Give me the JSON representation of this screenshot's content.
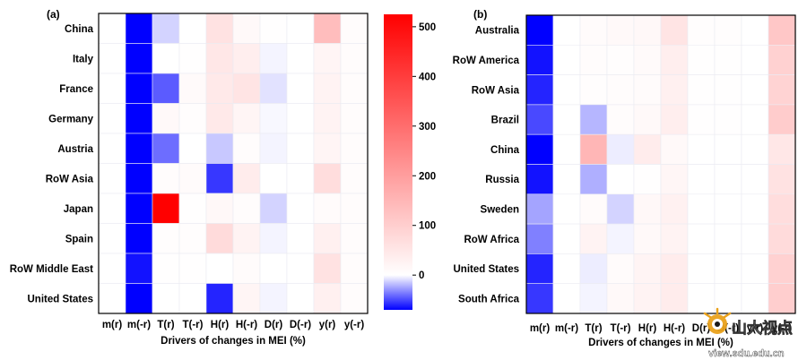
{
  "colorbar": {
    "ticks": [
      500,
      400,
      300,
      200,
      100,
      0
    ],
    "min": -70,
    "max": 525,
    "colors": {
      "negative": "#0000ff",
      "zero": "#ffffff",
      "positive": "#ff0000"
    }
  },
  "watermark": {
    "brand": "山大视点",
    "url": "view.sdu.edu.cn"
  },
  "chart_data": [
    {
      "type": "heatmap",
      "panel_label": "(a)",
      "xlabel": "Drivers of changes in MEI (%)",
      "x": [
        "m(r)",
        "m(-r)",
        "T(r)",
        "T(-r)",
        "H(r)",
        "H(-r)",
        "D(r)",
        "D(-r)",
        "y(r)",
        "y(-r)"
      ],
      "y": [
        "China",
        "Italy",
        "France",
        "Germany",
        "Austria",
        "RoW Asia",
        "Japan",
        "Spain",
        "RoW Middle East",
        "United States"
      ],
      "values": [
        [
          0,
          -70,
          -12,
          0,
          60,
          12,
          3,
          0,
          135,
          6
        ],
        [
          0,
          -70,
          0,
          3,
          50,
          35,
          -3,
          0,
          20,
          6
        ],
        [
          0,
          -70,
          -45,
          10,
          45,
          55,
          -8,
          0,
          25,
          6
        ],
        [
          0,
          -70,
          12,
          4,
          45,
          20,
          -2,
          0,
          25,
          6
        ],
        [
          0,
          -70,
          -40,
          0,
          -15,
          6,
          -3,
          0,
          20,
          6
        ],
        [
          0,
          -70,
          6,
          8,
          -55,
          40,
          0,
          0,
          70,
          6
        ],
        [
          0,
          -70,
          525,
          3,
          15,
          6,
          -12,
          0,
          8,
          6
        ],
        [
          0,
          -70,
          4,
          4,
          75,
          25,
          -3,
          0,
          30,
          6
        ],
        [
          0,
          -65,
          2,
          2,
          0,
          8,
          0,
          0,
          60,
          6
        ],
        [
          0,
          -70,
          0,
          0,
          -60,
          20,
          -3,
          0,
          30,
          6
        ]
      ]
    },
    {
      "type": "heatmap",
      "panel_label": "(b)",
      "xlabel": "Drivers of changes in MEI (%)",
      "x": [
        "m(r)",
        "m(-r)",
        "T(r)",
        "T(-r)",
        "H(r)",
        "H(-r)",
        "D(r)",
        "D(-r)",
        "y(r)",
        "y(-r)"
      ],
      "y": [
        "Australia",
        "RoW America",
        "RoW Asia",
        "Brazil",
        "China",
        "Russia",
        "Sweden",
        "RoW Africa",
        "United States",
        "South Africa"
      ],
      "values": [
        [
          -70,
          0,
          8,
          12,
          15,
          55,
          4,
          4,
          0,
          115
        ],
        [
          -65,
          0,
          6,
          4,
          10,
          35,
          3,
          3,
          0,
          95
        ],
        [
          -60,
          0,
          4,
          6,
          8,
          30,
          3,
          3,
          0,
          90
        ],
        [
          -50,
          0,
          -20,
          6,
          12,
          35,
          3,
          3,
          0,
          105
        ],
        [
          -70,
          0,
          150,
          -5,
          40,
          12,
          0,
          0,
          0,
          50
        ],
        [
          -65,
          0,
          -22,
          0,
          3,
          18,
          0,
          0,
          0,
          60
        ],
        [
          -25,
          0,
          8,
          -12,
          15,
          28,
          0,
          0,
          0,
          70
        ],
        [
          -35,
          0,
          25,
          -3,
          12,
          25,
          0,
          0,
          0,
          75
        ],
        [
          -60,
          0,
          -5,
          8,
          22,
          40,
          0,
          0,
          0,
          95
        ],
        [
          -55,
          0,
          -3,
          12,
          25,
          40,
          0,
          0,
          0,
          100
        ]
      ]
    }
  ]
}
